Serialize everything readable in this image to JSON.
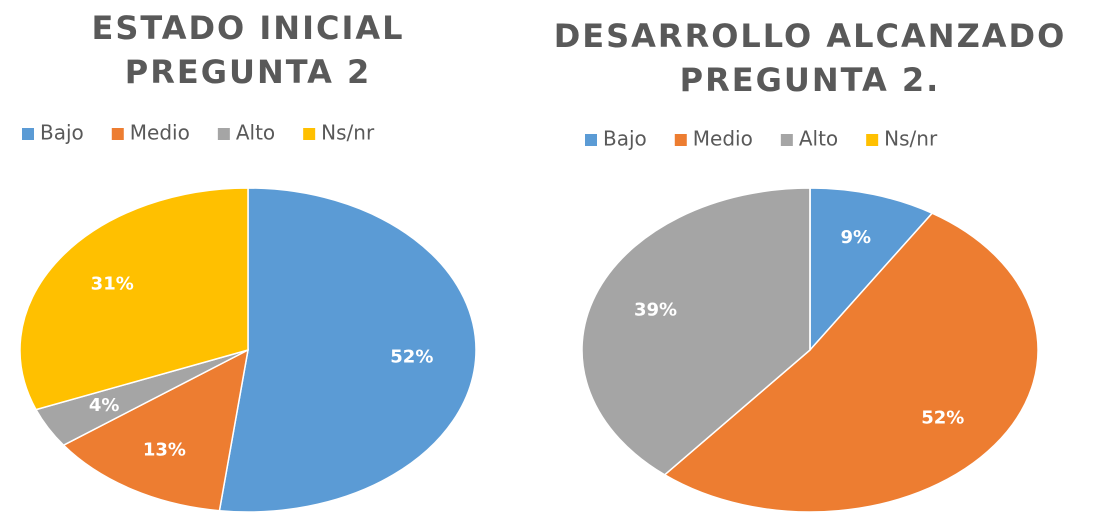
{
  "chart_data": [
    {
      "type": "pie",
      "title": [
        "ESTADO INICIAL",
        "PREGUNTA 2"
      ],
      "categories": [
        "Bajo",
        "Medio",
        "Alto",
        "Ns/nr"
      ],
      "values": [
        52,
        13,
        4,
        31
      ],
      "value_labels": [
        "52%",
        "13%",
        "4%",
        "31%"
      ],
      "colors": [
        "#5b9bd5",
        "#ed7d31",
        "#a5a5a5",
        "#ffc000"
      ],
      "legend": "top"
    },
    {
      "type": "pie",
      "title": [
        "DESARROLLO ALCANZADO",
        "PREGUNTA 2."
      ],
      "categories": [
        "Bajo",
        "Medio",
        "Alto",
        "Ns/nr"
      ],
      "values": [
        9,
        52,
        39,
        0
      ],
      "value_labels": [
        "9%",
        "52%",
        "39%",
        null
      ],
      "colors": [
        "#5b9bd5",
        "#ed7d31",
        "#a5a5a5",
        "#ffc000"
      ],
      "legend": "top"
    }
  ]
}
